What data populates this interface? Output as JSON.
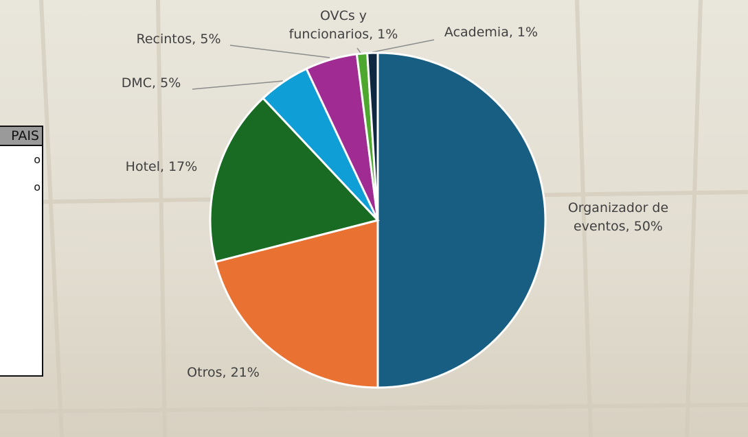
{
  "chart_data": {
    "type": "pie",
    "value_labels": [
      "Organizador de eventos, 50%",
      "Otros, 21%",
      "Hotel, 17%",
      "DMC, 5%",
      "Recintos, 5%",
      "OVCs y funcionarios, 1%",
      "Academia, 1%"
    ],
    "values": [
      50,
      21,
      17,
      5,
      5,
      1,
      1
    ],
    "colors": [
      "#175e82",
      "#e97132",
      "#196b24",
      "#0f9ed5",
      "#a02b93",
      "#4ea72e",
      "#0e2841"
    ]
  },
  "side_table": {
    "header": "PAIS",
    "rows": [
      "o",
      "o"
    ]
  }
}
